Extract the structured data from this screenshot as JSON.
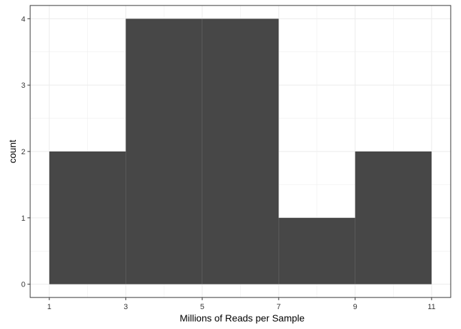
{
  "chart_data": {
    "type": "bar",
    "subtype": "histogram",
    "xlabel": "Millions of Reads per Sample",
    "ylabel": "count",
    "bins": [
      {
        "x0": 1,
        "x1": 3,
        "count": 2
      },
      {
        "x0": 3,
        "x1": 5,
        "count": 4
      },
      {
        "x0": 5,
        "x1": 7,
        "count": 4
      },
      {
        "x0": 7,
        "x1": 9,
        "count": 1
      },
      {
        "x0": 9,
        "x1": 11,
        "count": 2
      }
    ],
    "x_ticks": [
      1,
      3,
      5,
      7,
      9,
      11
    ],
    "y_ticks": [
      0,
      1,
      2,
      3,
      4
    ],
    "xlim": [
      0.5,
      11.5
    ],
    "ylim": [
      -0.2,
      4.2
    ],
    "grid": true,
    "bar_color": "#474747",
    "panel_border_color": "#333333",
    "grid_color": "#ebebeb"
  }
}
